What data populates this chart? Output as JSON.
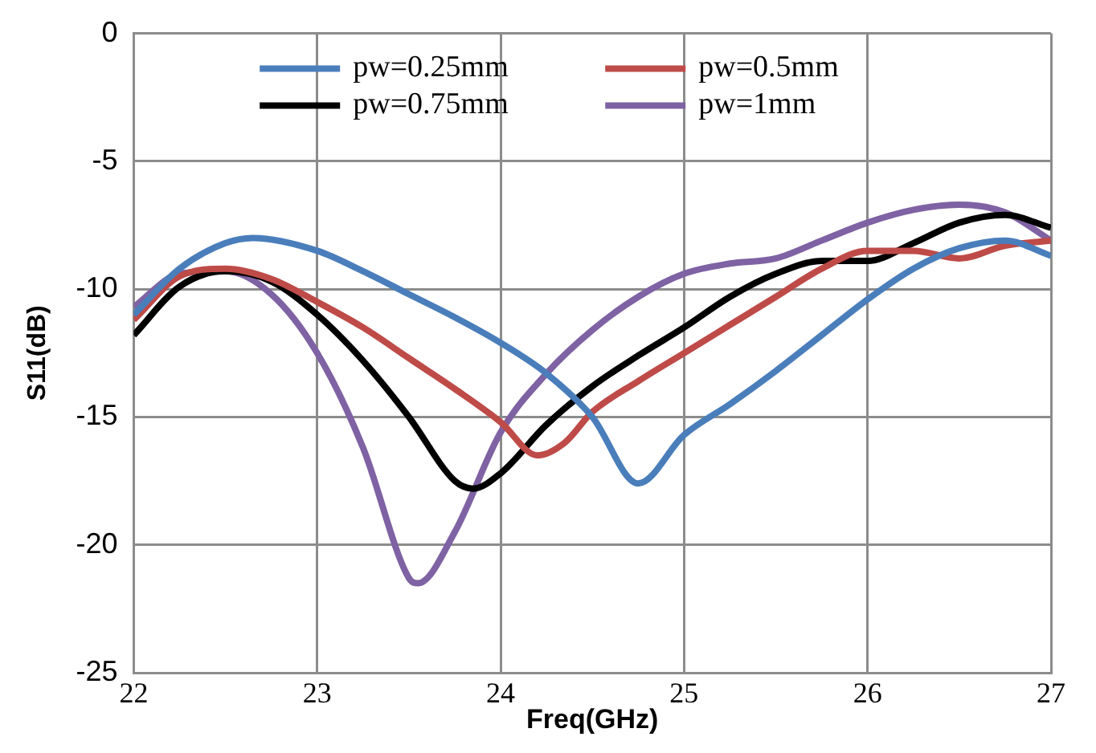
{
  "chart_data": {
    "type": "line",
    "xlabel": "Freq(GHz)",
    "ylabel": "S11(dB)",
    "xlim": [
      22,
      27
    ],
    "xticks": [
      22,
      23,
      24,
      25,
      26,
      27
    ],
    "ylim": [
      -25,
      0
    ],
    "yticks": [
      -25,
      -20,
      -15,
      -10,
      -5,
      0
    ],
    "grid": true,
    "legend": "top",
    "marker": "none",
    "line_style": "solid",
    "series": [
      {
        "name": "pw=0.25mm",
        "color": "#4a7ebb",
        "x": [
          22,
          22.25,
          22.5,
          22.65,
          23,
          23.25,
          23.5,
          23.75,
          24,
          24.25,
          24.5,
          24.75,
          25,
          25.25,
          25.5,
          25.75,
          26,
          26.25,
          26.5,
          26.75,
          27
        ],
        "values": [
          -11,
          -9.2,
          -8.2,
          -8,
          -8.5,
          -9.3,
          -10.2,
          -11.1,
          -12.1,
          -13.3,
          -15,
          -17.6,
          -15.7,
          -14.5,
          -13.2,
          -11.8,
          -10.4,
          -9.2,
          -8.4,
          -8.1,
          -8.7
        ]
      },
      {
        "name": "pw=0.5mm",
        "color": "#be4b48",
        "x": [
          22,
          22.25,
          22.5,
          22.75,
          23,
          23.25,
          23.5,
          23.75,
          24,
          24.2,
          24.35,
          24.5,
          24.75,
          25,
          25.25,
          25.5,
          25.75,
          26,
          26.25,
          26.5,
          26.75,
          27
        ],
        "values": [
          -11.2,
          -9.5,
          -9.2,
          -9.6,
          -10.5,
          -11.5,
          -12.7,
          -13.9,
          -15.2,
          -16.5,
          -16,
          -14.8,
          -13.6,
          -12.5,
          -11.4,
          -10.3,
          -9.2,
          -8.5,
          -8.5,
          -8.8,
          -8.3,
          -8.1
        ]
      },
      {
        "name": "pw=0.75mm",
        "color": "#000000",
        "x": [
          22,
          22.25,
          22.5,
          22.75,
          23,
          23.25,
          23.5,
          23.75,
          23.85,
          24,
          24.25,
          24.5,
          24.75,
          25,
          25.25,
          25.5,
          25.75,
          26,
          26.25,
          26.5,
          26.75,
          27
        ],
        "values": [
          -11.8,
          -9.9,
          -9.3,
          -9.7,
          -11,
          -12.8,
          -15,
          -17.5,
          -17.8,
          -17.2,
          -15.3,
          -13.8,
          -12.6,
          -11.5,
          -10.3,
          -9.4,
          -8.9,
          -8.9,
          -8.2,
          -7.4,
          -7.1,
          -7.6
        ]
      },
      {
        "name": "pw=1mm",
        "color": "#7f62a3",
        "x": [
          22,
          22.25,
          22.5,
          22.75,
          23,
          23.25,
          23.5,
          23.55,
          23.75,
          24,
          24.25,
          24.5,
          24.75,
          25,
          25.25,
          25.5,
          25.75,
          26,
          26.25,
          26.5,
          26.75,
          27
        ],
        "values": [
          -10.7,
          -9.4,
          -9.3,
          -10.2,
          -12.5,
          -16.2,
          -21.3,
          -21.5,
          -19.5,
          -15.6,
          -13.3,
          -11.6,
          -10.3,
          -9.4,
          -9,
          -8.8,
          -8.1,
          -7.4,
          -6.9,
          -6.7,
          -7,
          -8.1
        ]
      }
    ]
  }
}
